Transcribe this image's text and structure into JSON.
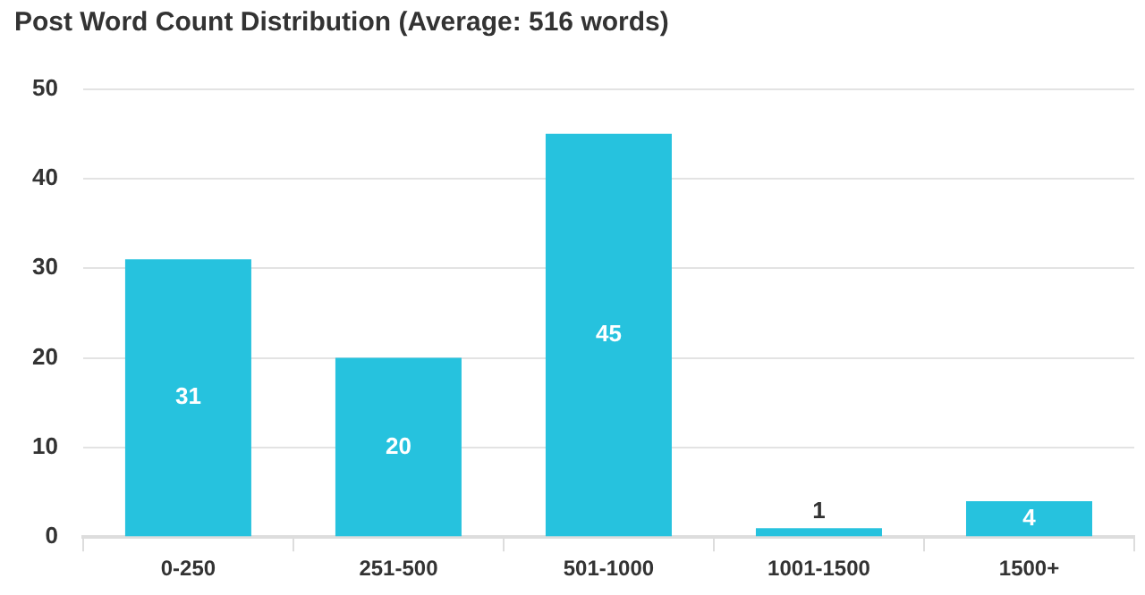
{
  "chart_data": {
    "type": "bar",
    "title": "Post Word Count Distribution (Average: 516 words)",
    "categories": [
      "0-250",
      "251-500",
      "501-1000",
      "1001-1500",
      "1500+"
    ],
    "values": [
      31,
      20,
      45,
      1,
      4
    ],
    "color": "#26c2de",
    "ylim": [
      0,
      50
    ],
    "yticks": [
      0,
      10,
      20,
      30,
      40,
      50
    ],
    "grid": "y",
    "legend": false,
    "data_labels": true
  }
}
